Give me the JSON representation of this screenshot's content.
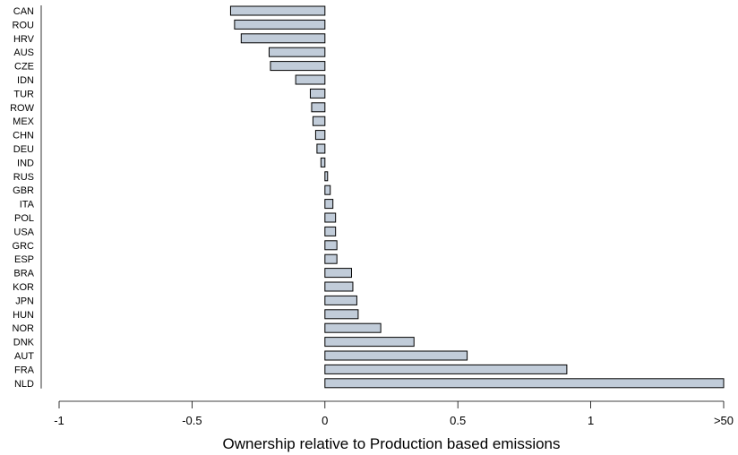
{
  "chart_data": {
    "type": "bar",
    "orientation": "horizontal",
    "categories": [
      "CAN",
      "ROU",
      "HRV",
      "AUS",
      "CZE",
      "IDN",
      "TUR",
      "ROW",
      "MEX",
      "CHN",
      "DEU",
      "IND",
      "RUS",
      "GBR",
      "ITA",
      "POL",
      "USA",
      "GRC",
      "ESP",
      "BRA",
      "KOR",
      "JPN",
      "HUN",
      "NOR",
      "DNK",
      "AUT",
      "FRA",
      "NLD"
    ],
    "values": [
      -0.355,
      -0.34,
      -0.315,
      -0.21,
      -0.205,
      -0.11,
      -0.055,
      -0.05,
      -0.045,
      -0.035,
      -0.03,
      -0.015,
      0.01,
      0.02,
      0.03,
      0.04,
      0.04,
      0.045,
      0.045,
      0.1,
      0.105,
      0.12,
      0.125,
      0.21,
      0.335,
      0.535,
      0.91,
      1.5
    ],
    "xlabel": "Ownership relative to Production based emissions",
    "ylabel": "",
    "xlim": [
      -1,
      1.5
    ],
    "xticks": [
      {
        "value": -1,
        "label": "-1"
      },
      {
        "value": -0.5,
        "label": "-0.5"
      },
      {
        "value": 0,
        "label": "0"
      },
      {
        "value": 0.5,
        "label": "0.5"
      },
      {
        "value": 1,
        "label": "1"
      },
      {
        "value": 1.5,
        "label": ">50"
      }
    ],
    "grid": false,
    "bar_color": "#c1ccd9",
    "bar_edge_color": "#000000"
  }
}
